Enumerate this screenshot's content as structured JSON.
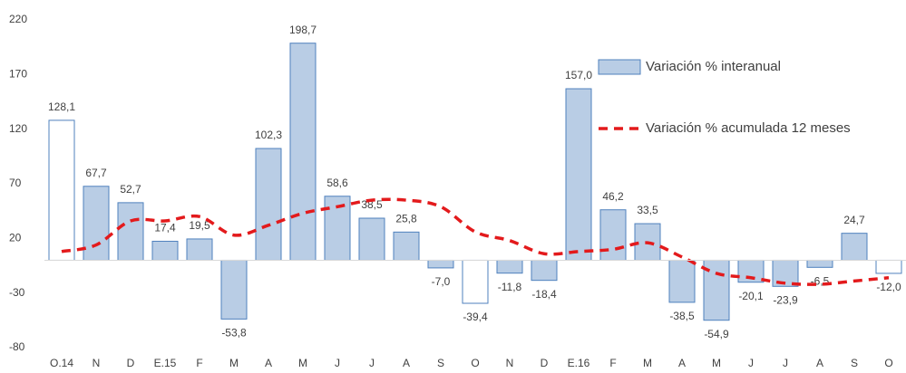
{
  "chart_data": {
    "type": "bar_line",
    "categories": [
      "O.14",
      "N",
      "D",
      "E.15",
      "F",
      "M",
      "A",
      "M",
      "J",
      "J",
      "A",
      "S",
      "O",
      "N",
      "D",
      "E.16",
      "F",
      "M",
      "A",
      "M",
      "J",
      "J",
      "A",
      "S",
      "O"
    ],
    "series": [
      {
        "name": "Variación % interanual",
        "type": "bar",
        "color": "#b9cde5",
        "edge_color": "#4f81bd",
        "fill_colors": [
          "#ffffff",
          "#b9cde5",
          "#b9cde5",
          "#b9cde5",
          "#b9cde5",
          "#b9cde5",
          "#b9cde5",
          "#b9cde5",
          "#b9cde5",
          "#b9cde5",
          "#b9cde5",
          "#b9cde5",
          "#ffffff",
          "#b9cde5",
          "#b9cde5",
          "#b9cde5",
          "#b9cde5",
          "#b9cde5",
          "#b9cde5",
          "#b9cde5",
          "#b9cde5",
          "#b9cde5",
          "#b9cde5",
          "#b9cde5",
          "#ffffff"
        ],
        "values": [
          128.1,
          67.7,
          52.7,
          17.4,
          19.5,
          -53.8,
          102.3,
          198.7,
          58.6,
          38.5,
          25.8,
          -7.0,
          -39.4,
          -11.8,
          -18.4,
          157.0,
          46.2,
          33.5,
          -38.5,
          -54.9,
          -20.1,
          -23.9,
          -6.5,
          24.7,
          -12.0
        ],
        "value_labels": [
          "128,1",
          "67,7",
          "52,7",
          "17,4",
          "19,5",
          "-53,8",
          "102,3",
          "198,7",
          "58,6",
          "38,5",
          "25,8",
          "-7,0",
          "-39,4",
          "-11,8",
          "-18,4",
          "157,0",
          "46,2",
          "33,5",
          "-38,5",
          "-54,9",
          "-20,1",
          "-23,9",
          "-6,5",
          "24,7",
          "-12,0"
        ]
      },
      {
        "name": "Variación % acumulada 12 meses",
        "type": "line",
        "color": "#e31a1c",
        "dashed": true,
        "values": [
          8,
          14,
          36,
          36,
          40,
          23,
          32,
          43,
          49,
          55,
          55,
          49,
          26,
          18,
          6,
          8,
          10,
          16,
          3,
          -12,
          -16,
          -21,
          -22,
          -19,
          -16
        ]
      }
    ],
    "ylim": [
      -80,
      220
    ],
    "yticks": [
      -80,
      -30,
      20,
      70,
      120,
      170,
      220
    ],
    "grid": false
  }
}
